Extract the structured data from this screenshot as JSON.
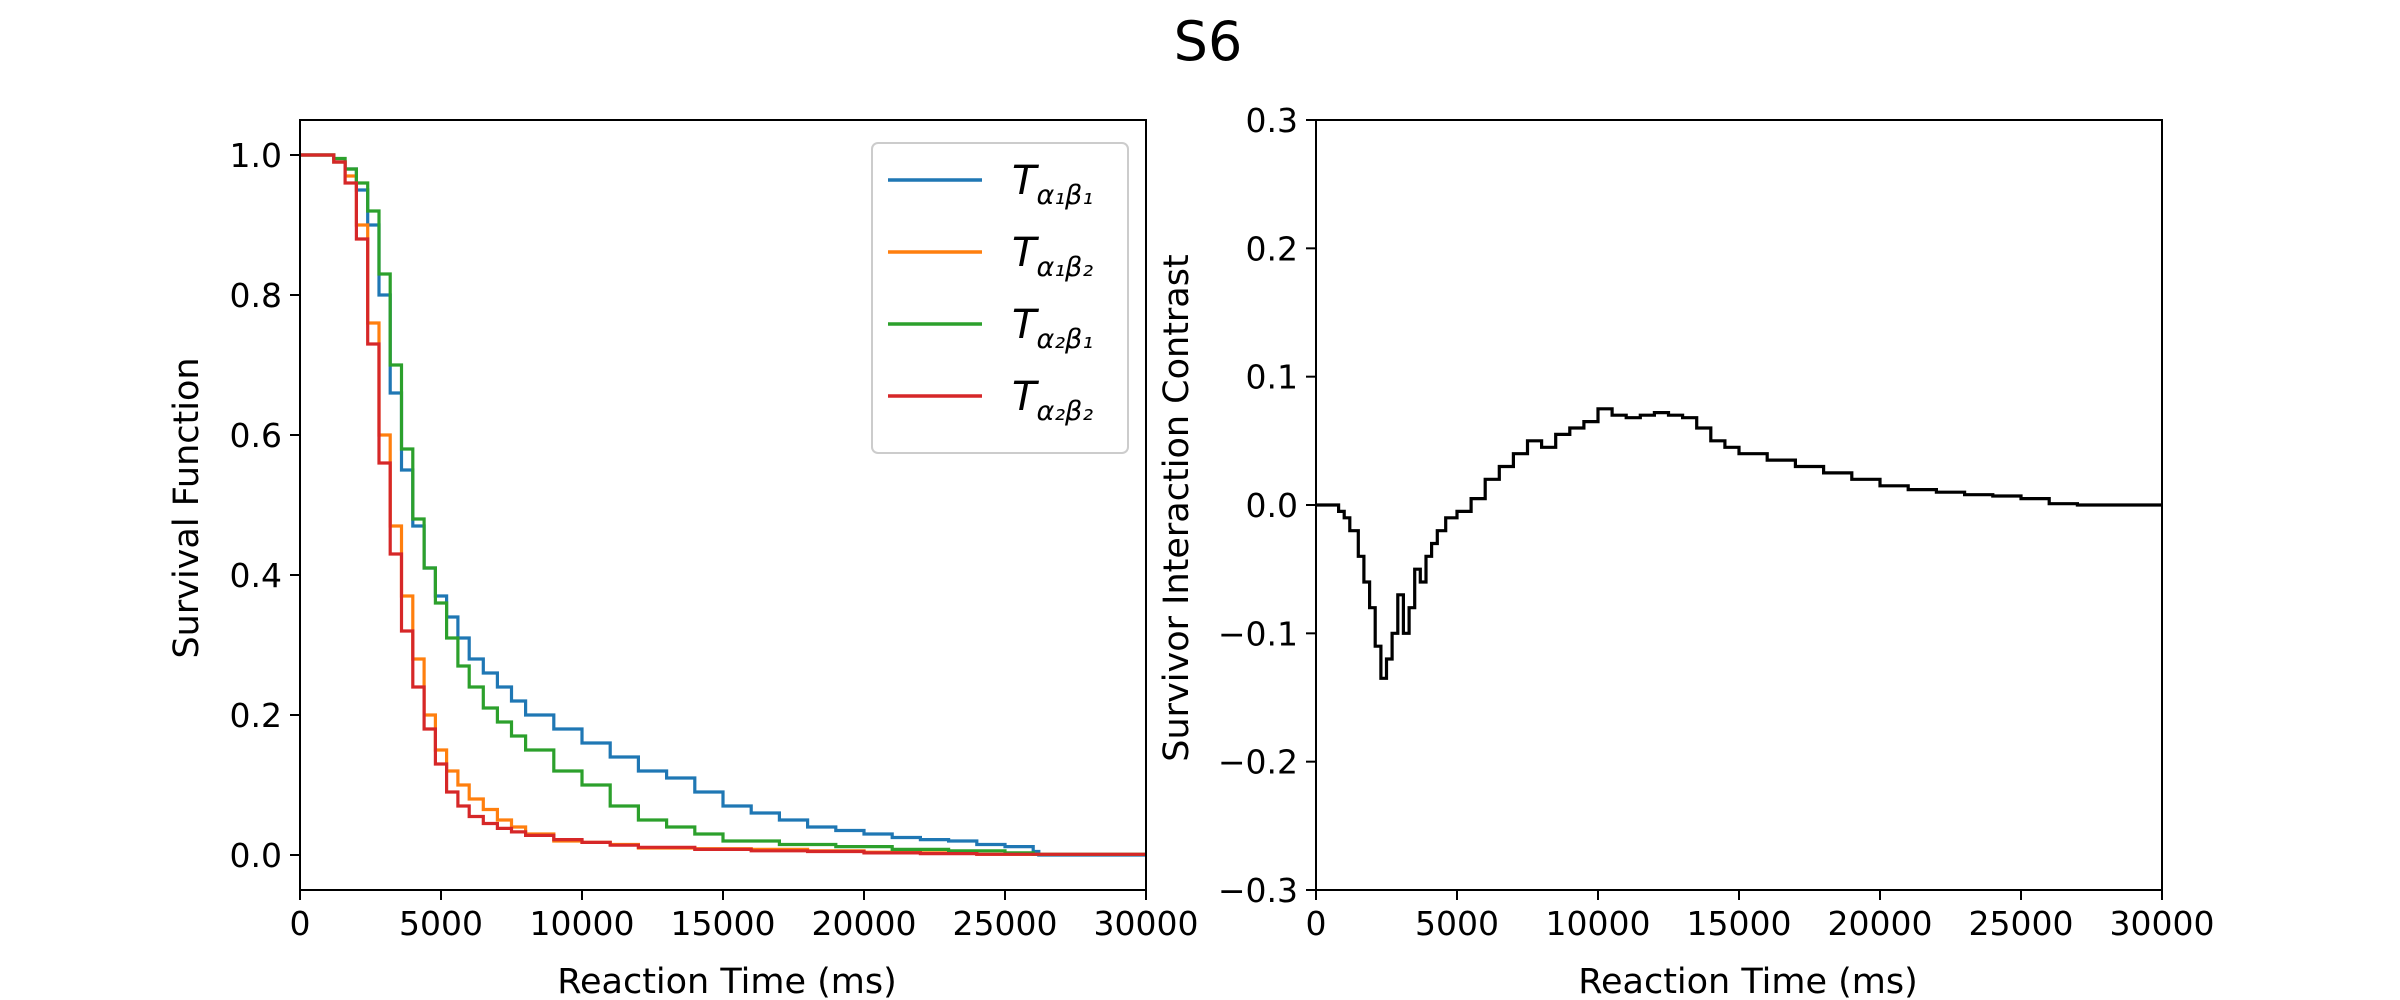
{
  "figure": {
    "title": "S6"
  },
  "chart_data": [
    {
      "type": "line",
      "name": "survival",
      "xlabel": "Reaction Time (ms)",
      "ylabel": "Survival Function",
      "xlim": [
        0,
        30000
      ],
      "ylim": [
        -0.05,
        1.05
      ],
      "xticks": [
        0,
        5000,
        10000,
        15000,
        20000,
        25000,
        30000
      ],
      "xtick_labels": [
        "0",
        "5000",
        "10000",
        "15000",
        "20000",
        "25000",
        "30000"
      ],
      "yticks": [
        0.0,
        0.2,
        0.4,
        0.6,
        0.8,
        1.0
      ],
      "ytick_labels": [
        "0.0",
        "0.2",
        "0.4",
        "0.6",
        "0.8",
        "1.0"
      ],
      "legend_position": "top-right",
      "series": [
        {
          "name": "a1b1",
          "label_main": "T",
          "label_sub": "α₁β₁",
          "color": "#1f77b4",
          "points": [
            [
              0,
              1.0
            ],
            [
              800,
              1.0
            ],
            [
              1200,
              0.99
            ],
            [
              1600,
              0.98
            ],
            [
              2000,
              0.95
            ],
            [
              2400,
              0.9
            ],
            [
              2800,
              0.8
            ],
            [
              3200,
              0.66
            ],
            [
              3600,
              0.55
            ],
            [
              4000,
              0.47
            ],
            [
              4400,
              0.41
            ],
            [
              4800,
              0.37
            ],
            [
              5200,
              0.34
            ],
            [
              5600,
              0.31
            ],
            [
              6000,
              0.28
            ],
            [
              6500,
              0.26
            ],
            [
              7000,
              0.24
            ],
            [
              7500,
              0.22
            ],
            [
              8000,
              0.2
            ],
            [
              9000,
              0.18
            ],
            [
              10000,
              0.16
            ],
            [
              11000,
              0.14
            ],
            [
              12000,
              0.12
            ],
            [
              13000,
              0.11
            ],
            [
              14000,
              0.09
            ],
            [
              15000,
              0.07
            ],
            [
              16000,
              0.06
            ],
            [
              17000,
              0.05
            ],
            [
              18000,
              0.04
            ],
            [
              19000,
              0.035
            ],
            [
              20000,
              0.03
            ],
            [
              21000,
              0.025
            ],
            [
              22000,
              0.022
            ],
            [
              23000,
              0.02
            ],
            [
              24000,
              0.015
            ],
            [
              25000,
              0.012
            ],
            [
              26000,
              0.005
            ],
            [
              26200,
              0.0
            ],
            [
              30000,
              0.0
            ]
          ]
        },
        {
          "name": "a1b2",
          "label_main": "T",
          "label_sub": "α₁β₂",
          "color": "#ff7f0e",
          "points": [
            [
              0,
              1.0
            ],
            [
              800,
              1.0
            ],
            [
              1200,
              0.99
            ],
            [
              1600,
              0.97
            ],
            [
              2000,
              0.9
            ],
            [
              2400,
              0.76
            ],
            [
              2800,
              0.6
            ],
            [
              3200,
              0.47
            ],
            [
              3600,
              0.37
            ],
            [
              4000,
              0.28
            ],
            [
              4400,
              0.2
            ],
            [
              4800,
              0.15
            ],
            [
              5200,
              0.12
            ],
            [
              5600,
              0.1
            ],
            [
              6000,
              0.08
            ],
            [
              6500,
              0.065
            ],
            [
              7000,
              0.05
            ],
            [
              7500,
              0.04
            ],
            [
              8000,
              0.03
            ],
            [
              9000,
              0.02
            ],
            [
              10000,
              0.018
            ],
            [
              11000,
              0.015
            ],
            [
              12000,
              0.01
            ],
            [
              14000,
              0.009
            ],
            [
              16000,
              0.008
            ],
            [
              18000,
              0.006
            ],
            [
              20000,
              0.004
            ],
            [
              22000,
              0.003
            ],
            [
              24000,
              0.001
            ],
            [
              30000,
              0.0
            ]
          ]
        },
        {
          "name": "a2b1",
          "label_main": "T",
          "label_sub": "α₂β₁",
          "color": "#2ca02c",
          "points": [
            [
              0,
              1.0
            ],
            [
              800,
              1.0
            ],
            [
              1200,
              0.995
            ],
            [
              1600,
              0.98
            ],
            [
              2000,
              0.96
            ],
            [
              2400,
              0.92
            ],
            [
              2800,
              0.83
            ],
            [
              3200,
              0.7
            ],
            [
              3600,
              0.58
            ],
            [
              4000,
              0.48
            ],
            [
              4400,
              0.41
            ],
            [
              4800,
              0.36
            ],
            [
              5200,
              0.31
            ],
            [
              5600,
              0.27
            ],
            [
              6000,
              0.24
            ],
            [
              6500,
              0.21
            ],
            [
              7000,
              0.19
            ],
            [
              7500,
              0.17
            ],
            [
              8000,
              0.15
            ],
            [
              9000,
              0.12
            ],
            [
              10000,
              0.1
            ],
            [
              11000,
              0.07
            ],
            [
              12000,
              0.05
            ],
            [
              13000,
              0.04
            ],
            [
              14000,
              0.03
            ],
            [
              15000,
              0.02
            ],
            [
              17000,
              0.015
            ],
            [
              19000,
              0.012
            ],
            [
              21000,
              0.008
            ],
            [
              23000,
              0.006
            ],
            [
              25000,
              0.003
            ],
            [
              26000,
              0.001
            ],
            [
              30000,
              0.0
            ]
          ]
        },
        {
          "name": "a2b2",
          "label_main": "T",
          "label_sub": "α₂β₂",
          "color": "#d62728",
          "points": [
            [
              0,
              1.0
            ],
            [
              800,
              1.0
            ],
            [
              1200,
              0.99
            ],
            [
              1600,
              0.96
            ],
            [
              2000,
              0.88
            ],
            [
              2400,
              0.73
            ],
            [
              2800,
              0.56
            ],
            [
              3200,
              0.43
            ],
            [
              3600,
              0.32
            ],
            [
              4000,
              0.24
            ],
            [
              4400,
              0.18
            ],
            [
              4800,
              0.13
            ],
            [
              5200,
              0.09
            ],
            [
              5600,
              0.07
            ],
            [
              6000,
              0.055
            ],
            [
              6500,
              0.045
            ],
            [
              7000,
              0.038
            ],
            [
              7500,
              0.033
            ],
            [
              8000,
              0.028
            ],
            [
              9000,
              0.022
            ],
            [
              10000,
              0.018
            ],
            [
              11000,
              0.014
            ],
            [
              12000,
              0.011
            ],
            [
              14000,
              0.008
            ],
            [
              16000,
              0.006
            ],
            [
              18000,
              0.005
            ],
            [
              20000,
              0.003
            ],
            [
              22000,
              0.002
            ],
            [
              24000,
              0.001
            ],
            [
              30000,
              0.0
            ]
          ]
        }
      ]
    },
    {
      "type": "line",
      "name": "sic",
      "xlabel": "Reaction Time (ms)",
      "ylabel": "Survivor Interaction Contrast",
      "xlim": [
        0,
        30000
      ],
      "ylim": [
        -0.3,
        0.3
      ],
      "xticks": [
        0,
        5000,
        10000,
        15000,
        20000,
        25000,
        30000
      ],
      "xtick_labels": [
        "0",
        "5000",
        "10000",
        "15000",
        "20000",
        "25000",
        "30000"
      ],
      "yticks": [
        -0.3,
        -0.2,
        -0.1,
        0.0,
        0.1,
        0.2,
        0.3
      ],
      "ytick_labels": [
        "−0.3",
        "−0.2",
        "−0.1",
        "0.0",
        "0.1",
        "0.2",
        "0.3"
      ],
      "series": [
        {
          "name": "SIC",
          "color": "#000000",
          "points": [
            [
              0,
              0.0
            ],
            [
              500,
              0.0
            ],
            [
              800,
              -0.005
            ],
            [
              1000,
              -0.01
            ],
            [
              1200,
              -0.02
            ],
            [
              1500,
              -0.04
            ],
            [
              1700,
              -0.06
            ],
            [
              1900,
              -0.08
            ],
            [
              2100,
              -0.11
            ],
            [
              2300,
              -0.135
            ],
            [
              2500,
              -0.12
            ],
            [
              2700,
              -0.1
            ],
            [
              2900,
              -0.07
            ],
            [
              3100,
              -0.1
            ],
            [
              3300,
              -0.08
            ],
            [
              3500,
              -0.05
            ],
            [
              3700,
              -0.06
            ],
            [
              3900,
              -0.04
            ],
            [
              4100,
              -0.03
            ],
            [
              4300,
              -0.02
            ],
            [
              4600,
              -0.01
            ],
            [
              5000,
              -0.005
            ],
            [
              5500,
              0.005
            ],
            [
              6000,
              0.02
            ],
            [
              6500,
              0.03
            ],
            [
              7000,
              0.04
            ],
            [
              7500,
              0.05
            ],
            [
              8000,
              0.045
            ],
            [
              8500,
              0.055
            ],
            [
              9000,
              0.06
            ],
            [
              9500,
              0.065
            ],
            [
              10000,
              0.075
            ],
            [
              10500,
              0.07
            ],
            [
              11000,
              0.068
            ],
            [
              11500,
              0.07
            ],
            [
              12000,
              0.072
            ],
            [
              12500,
              0.07
            ],
            [
              13000,
              0.068
            ],
            [
              13500,
              0.06
            ],
            [
              14000,
              0.05
            ],
            [
              14500,
              0.045
            ],
            [
              15000,
              0.04
            ],
            [
              16000,
              0.035
            ],
            [
              17000,
              0.03
            ],
            [
              18000,
              0.025
            ],
            [
              19000,
              0.02
            ],
            [
              20000,
              0.015
            ],
            [
              21000,
              0.012
            ],
            [
              22000,
              0.01
            ],
            [
              23000,
              0.008
            ],
            [
              24000,
              0.007
            ],
            [
              25000,
              0.005
            ],
            [
              26000,
              0.001
            ],
            [
              27000,
              0.0
            ],
            [
              30000,
              0.0
            ]
          ]
        }
      ]
    }
  ]
}
